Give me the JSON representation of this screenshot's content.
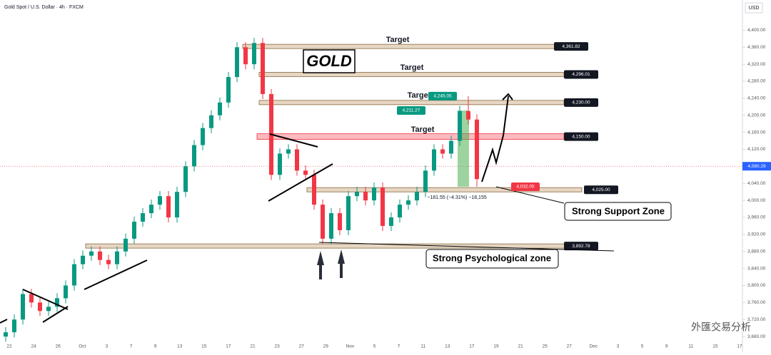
{
  "chart_data": {
    "type": "candlestick",
    "title": "Gold Spot / U.S. Dollar · 4h · FXCM",
    "currency": "USD",
    "overlay_title": "GOLD",
    "watermark": "外匯交易分析",
    "open": [
      3680,
      3690,
      3720,
      3780,
      3760,
      3740,
      3750,
      3770,
      3800,
      3850,
      3870,
      3880,
      3860,
      3850,
      3880,
      3910,
      3950,
      3970,
      3990,
      4010,
      3960,
      4020,
      4080,
      4130,
      4170,
      4200,
      4230,
      4290,
      4360,
      4320,
      4370,
      4250,
      4060,
      4110,
      4120,
      4070,
      4060,
      3990,
      3910,
      3970,
      3930,
      4010,
      4020,
      4000,
      4030,
      3940,
      3960,
      3990,
      4000,
      4020,
      4070,
      4120,
      4110,
      4140,
      4210,
      4190
    ],
    "high": [
      3702,
      3732,
      3792,
      3792,
      3772,
      3762,
      3782,
      3812,
      3862,
      3882,
      3892,
      3892,
      3872,
      3892,
      3922,
      3962,
      3982,
      4002,
      4022,
      4022,
      4032,
      4092,
      4142,
      4182,
      4212,
      4242,
      4302,
      4372,
      4372,
      4382,
      4382,
      4262,
      4122,
      4132,
      4132,
      4082,
      4072,
      4002,
      3982,
      3982,
      4022,
      4032,
      4032,
      4042,
      4042,
      3972,
      4002,
      4012,
      4032,
      4082,
      4132,
      4132,
      4152,
      4222,
      4245,
      4202
    ],
    "low": [
      3668,
      3678,
      3708,
      3748,
      3728,
      3728,
      3738,
      3758,
      3788,
      3838,
      3858,
      3848,
      3838,
      3838,
      3868,
      3898,
      3938,
      3958,
      3978,
      3948,
      3948,
      4008,
      4068,
      4118,
      4158,
      4188,
      4218,
      4278,
      4308,
      4308,
      4238,
      4048,
      4048,
      4098,
      4058,
      4048,
      3978,
      3898,
      3898,
      3918,
      3918,
      3998,
      3988,
      3988,
      3928,
      3928,
      3948,
      3978,
      3988,
      4008,
      4058,
      4098,
      4098,
      4128,
      4178,
      4032
    ],
    "close": [
      3690,
      3720,
      3780,
      3760,
      3740,
      3750,
      3770,
      3800,
      3850,
      3870,
      3880,
      3860,
      3850,
      3880,
      3910,
      3950,
      3970,
      3990,
      4010,
      3960,
      4020,
      4080,
      4130,
      4170,
      4200,
      4230,
      4290,
      4360,
      4320,
      4370,
      4250,
      4060,
      4110,
      4120,
      4070,
      4060,
      3990,
      3910,
      3970,
      3930,
      4010,
      4020,
      4000,
      4030,
      3940,
      3960,
      3990,
      4000,
      4020,
      4070,
      4120,
      4110,
      4140,
      4210,
      4190,
      4050
    ],
    "up_color": "#089981",
    "down_color": "#f23645",
    "ylim": [
      3645,
      4471
    ],
    "yticks": [
      {
        "value": 3680,
        "label": "3,680.00"
      },
      {
        "value": 3720,
        "label": "3,720.00"
      },
      {
        "value": 3760,
        "label": "3,760.00"
      },
      {
        "value": 3800,
        "label": "3,800.00"
      },
      {
        "value": 3840,
        "label": "3,840.00"
      },
      {
        "value": 3880,
        "label": "3,880.00"
      },
      {
        "value": 3920,
        "label": "3,920.00"
      },
      {
        "value": 3960,
        "label": "3,960.00"
      },
      {
        "value": 4000,
        "label": "4,000.00"
      },
      {
        "value": 4040,
        "label": "4,040.00"
      },
      {
        "value": 4080,
        "label": "4,080.00"
      },
      {
        "value": 4120,
        "label": "4,120.00"
      },
      {
        "value": 4160,
        "label": "4,160.00"
      },
      {
        "value": 4200,
        "label": "4,200.00"
      },
      {
        "value": 4240,
        "label": "4,240.00"
      },
      {
        "value": 4280,
        "label": "4,280.00"
      },
      {
        "value": 4320,
        "label": "4,320.00"
      },
      {
        "value": 4360,
        "label": "4,360.00"
      },
      {
        "value": 4400,
        "label": "4,400.00"
      }
    ],
    "xtick_labels": [
      "22",
      "24",
      "26",
      "Oct",
      "3",
      "7",
      "9",
      "13",
      "15",
      "17",
      "21",
      "23",
      "27",
      "29",
      "Nov",
      "5",
      "7",
      "11",
      "13",
      "17",
      "19",
      "21",
      "25",
      "27",
      "Dec",
      "3",
      "5",
      "9",
      "11",
      "15",
      "17"
    ],
    "levels": [
      {
        "value": 4361.82,
        "label": "4,361.82",
        "color": "#c8a57a"
      },
      {
        "value": 4296.01,
        "label": "4,296.01",
        "color": "#c8a57a"
      },
      {
        "value": 4230.0,
        "label": "4,230.00",
        "color": "#c8a57a"
      },
      {
        "value": 4150.0,
        "label": "4,150.00",
        "color": "#f23645"
      },
      {
        "value": 4025.0,
        "label": "4,025.00",
        "color": "#c8a57a"
      },
      {
        "value": 3892.78,
        "label": "3,892.78",
        "color": "#c8a57a"
      }
    ],
    "targets": [
      "Target",
      "Target",
      "Target",
      "Target"
    ],
    "price_tags": [
      {
        "value": 4245.05,
        "label": "4,245.05",
        "color": "#089981"
      },
      {
        "value": 4211.27,
        "label": "4,211.27",
        "color": "#089981"
      },
      {
        "value": 4032.05,
        "label": "4,032.05",
        "color": "#f23645"
      }
    ],
    "last_price": {
      "value": 4080.29,
      "label": "4,080.29",
      "color": "#2962ff"
    },
    "measure_label": "−181.55 (−4.31%) −18,155",
    "callouts": [
      "Strong Support Zone",
      "Strong Psychological zone"
    ]
  }
}
